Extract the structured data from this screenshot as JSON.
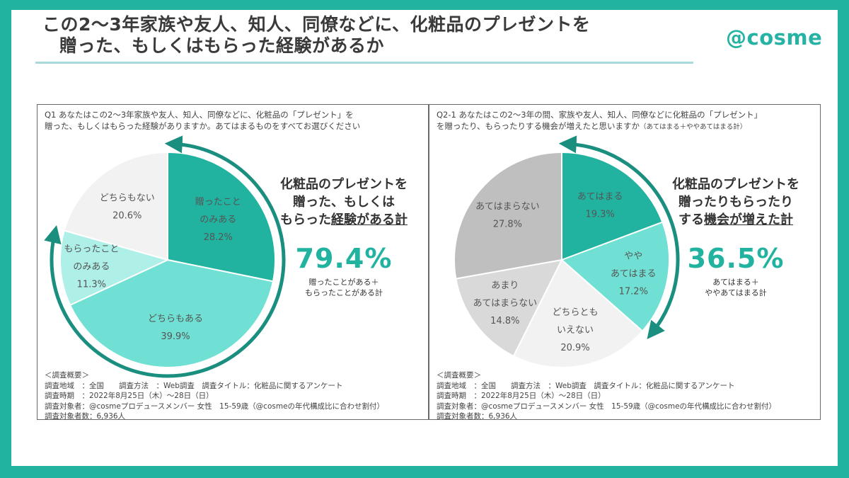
{
  "header": {
    "title_line1": "この2～3年家族や友人、知人、同僚などに、化粧品のプレゼントを",
    "title_line2": "贈った、もしくはもらった経験があるか",
    "logo": "@cosme"
  },
  "left_panel": {
    "question_line1": "Q1 あなたはこの2～3年家族や友人、知人、同僚などに、化粧品の「プレゼント」を",
    "question_line2": "贈った、もしくはもらった経験がありますか。あてはまるものをすべてお選びください",
    "side_head_line1": "化粧品のプレゼントを",
    "side_head_line2": "贈った、もしくは",
    "side_head_line3a": "もらった",
    "side_head_line3b": "経験がある計",
    "big_pct": "79.4%",
    "side_sub_line1": "贈ったことがある＋",
    "side_sub_line2": "もらったことがある計"
  },
  "right_panel": {
    "question_line1": "Q2-1 あなたはこの2～3年の間、家族や友人、知人、同僚などに化粧品の「プレゼント」",
    "question_line2": "を贈ったり、もらったりする機会が増えたと思いますか",
    "question_line2_small": "（あてはまる＋ややあてはまる計）",
    "side_head_line1": "化粧品のプレゼントを",
    "side_head_line2": "贈ったりもらったり",
    "side_head_line3a": "する",
    "side_head_line3b": "機会が増えた計",
    "big_pct": "36.5%",
    "side_sub_line1": "あてはまる＋",
    "side_sub_line2": "ややあてはまる計"
  },
  "survey_note": {
    "heading": "＜調査概要＞",
    "line1": "調査地域　：全国　　調査方法　：Web調査　調査タイトル：化粧品に関するアンケート",
    "line2": "調査時期　：2022年8月25日（木）～28日（日）",
    "line3": "調査対象者：@cosmeプロデュースメンバー 女性　15-59歳（@cosmeの年代構成比に合わせ割付）",
    "line4": "調査対象者数：6,936人"
  },
  "chart_data": [
    {
      "type": "pie",
      "title": "",
      "categories": [
        "贈ったことのみある",
        "どちらもある",
        "もらったことのみある",
        "どちらもない"
      ],
      "label_lines": [
        [
          "贈ったこと",
          "のみある"
        ],
        [
          "どちらもある"
        ],
        [
          "もらったこと",
          "のみある"
        ],
        [
          "どちらもない"
        ]
      ],
      "values": [
        28.2,
        39.9,
        11.3,
        20.6
      ],
      "value_labels": [
        "28.2%",
        "39.9%",
        "11.3%",
        "20.6%"
      ],
      "colors": [
        "#21b3a0",
        "#6fe0d3",
        "#aeefe8",
        "#f2f2f2"
      ],
      "start": "12 o'clock",
      "direction": "clockwise"
    },
    {
      "type": "pie",
      "title": "",
      "categories": [
        "あてはまる",
        "ややあてはまる",
        "どちらともいえない",
        "あまりあてはまらない",
        "あてはまらない"
      ],
      "label_lines": [
        [
          "あてはまる"
        ],
        [
          "やや",
          "あてはまる"
        ],
        [
          "どちらとも",
          "いえない"
        ],
        [
          "あまり",
          "あてはまらない"
        ],
        [
          "あてはまらない"
        ]
      ],
      "values": [
        19.3,
        17.2,
        20.9,
        14.8,
        27.8
      ],
      "value_labels": [
        "19.3%",
        "17.2%",
        "20.9%",
        "14.8%",
        "27.8%"
      ],
      "colors": [
        "#21b3a0",
        "#6fe0d3",
        "#f2f2f2",
        "#d9d9d9",
        "#bfbfbf"
      ],
      "start": "12 o'clock",
      "direction": "clockwise"
    }
  ]
}
